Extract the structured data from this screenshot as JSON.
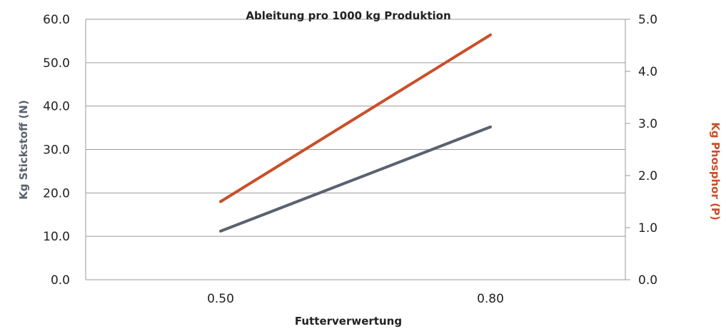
{
  "chart_data": {
    "type": "line",
    "title": "Ableitung pro 1000 kg Produktion",
    "xlabel": "Futterverwertung",
    "ylabel_left": "Kg Stickstoff (N)",
    "ylabel_right": "Kg Phosphor (P)",
    "categories": [
      "0.50",
      "0.80"
    ],
    "y_left_ticks": [
      "0.0",
      "10.0",
      "20.0",
      "30.0",
      "40.0",
      "50.0",
      "60.0"
    ],
    "y_right_ticks": [
      "0.0",
      "1.0",
      "2.0",
      "3.0",
      "4.0",
      "5.0"
    ],
    "ylim_left": [
      0,
      60
    ],
    "ylim_right": [
      0,
      5
    ],
    "grid": true,
    "series": [
      {
        "name": "Kg Stickstoff (N)",
        "axis": "left",
        "values": [
          11.2,
          35.2
        ],
        "color": "#5a6270"
      },
      {
        "name": "Kg Phosphor (P)",
        "axis": "right",
        "values": [
          1.5,
          4.7
        ],
        "color": "#c8502a"
      }
    ]
  }
}
